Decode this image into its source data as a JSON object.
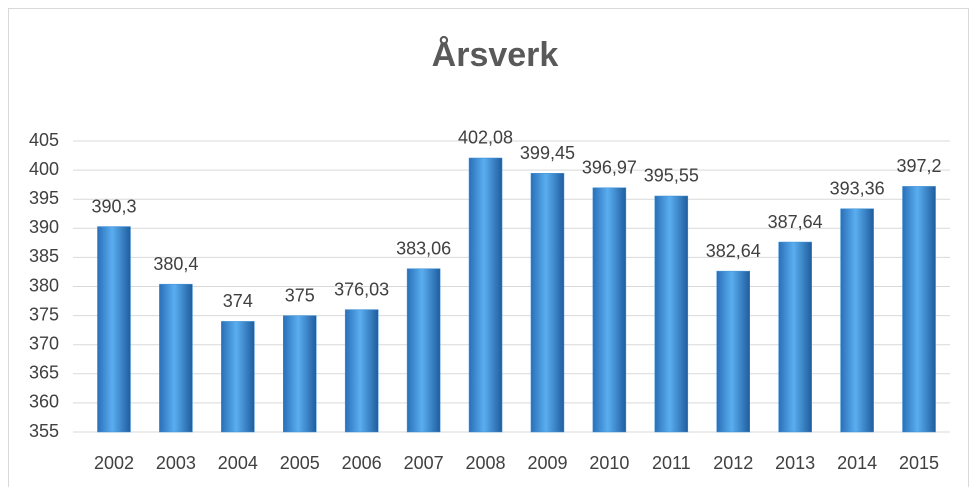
{
  "chart_data": {
    "type": "bar",
    "title": "Årsverk",
    "categories": [
      "2002",
      "2003",
      "2004",
      "2005",
      "2006",
      "2007",
      "2008",
      "2009",
      "2010",
      "2011",
      "2012",
      "2013",
      "2014",
      "2015"
    ],
    "values": [
      390.3,
      380.4,
      374,
      375,
      376.03,
      383.06,
      402.08,
      399.45,
      396.97,
      395.55,
      382.64,
      387.64,
      393.36,
      397.2
    ],
    "value_labels": [
      "390,3",
      "380,4",
      "374",
      "375",
      "376,03",
      "383,06",
      "402,08",
      "399,45",
      "396,97",
      "395,55",
      "382,64",
      "387,64",
      "393,36",
      "397,2"
    ],
    "color": "#3a8fd6",
    "ylim": [
      355,
      405
    ],
    "yticks": [
      355,
      360,
      365,
      370,
      375,
      380,
      385,
      390,
      395,
      400,
      405
    ],
    "grid": true
  }
}
